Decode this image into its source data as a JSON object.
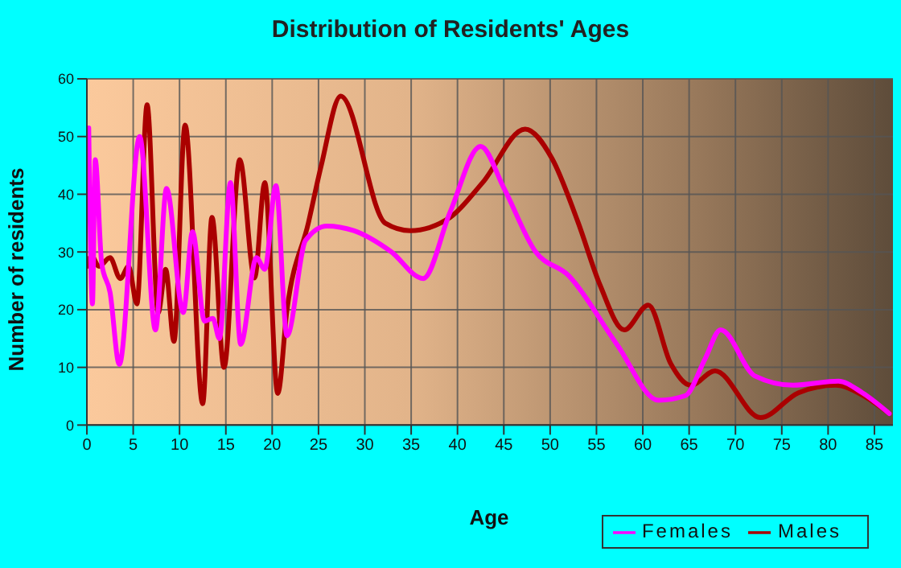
{
  "chart_data": {
    "type": "line",
    "title": "Distribution of Residents' Ages",
    "xlabel": "Age",
    "ylabel": "Number of residents",
    "xlim": [
      0,
      87
    ],
    "xticks": [
      0,
      5,
      10,
      15,
      20,
      25,
      30,
      35,
      40,
      45,
      50,
      55,
      60,
      65,
      70,
      75,
      80,
      85
    ],
    "ylim": [
      0,
      60
    ],
    "yticks": [
      0,
      10,
      20,
      30,
      40,
      50,
      60
    ],
    "grid": true,
    "legend": "bottom right",
    "marker": "none",
    "line_style": "solid",
    "series": [
      {
        "name": "Males",
        "color": "#aa0000",
        "x": [
          0,
          0.5,
          1.3,
          2.5,
          3.6,
          4.5,
          5.4,
          6.5,
          7.7,
          8.5,
          9.4,
          10.6,
          12.5,
          13.5,
          14.8,
          16.5,
          18.1,
          19.2,
          20.6,
          21.6,
          23.9,
          25.3,
          27.4,
          32.2,
          34.9,
          39.2,
          42.7,
          47.3,
          50.2,
          53,
          55.4,
          58,
          60.6,
          63,
          65.2,
          67.8,
          72.7,
          76.8,
          80.8,
          83.7,
          86.6
        ],
        "values": [
          27.5,
          29.3,
          27.5,
          29,
          25.4,
          27.5,
          21,
          55.5,
          19.5,
          27,
          14.5,
          52,
          3.7,
          36,
          10,
          46,
          25.5,
          42,
          5.5,
          20,
          35,
          45,
          57,
          35,
          33.7,
          36,
          42,
          51.3,
          46.2,
          35.2,
          24.2,
          16.5,
          20.8,
          10.7,
          6.9,
          9.4,
          1.3,
          5.6,
          6.9,
          5.2,
          2
        ]
      },
      {
        "name": "Females",
        "color": "#ff00ff",
        "x": [
          0.2,
          0.6,
          0.9,
          1.6,
          2.5,
          3.5,
          5.7,
          7.4,
          8.6,
          10.4,
          11.4,
          12.7,
          13.6,
          14.3,
          15.5,
          16.6,
          18.3,
          19.2,
          20.4,
          21.6,
          23.6,
          25.9,
          28.8,
          32.8,
          36.3,
          39.2,
          42.5,
          45,
          48.4,
          52,
          57.2,
          61.7,
          64.6,
          66.7,
          68.4,
          72.1,
          76.2,
          81.1,
          83.7,
          86.6
        ],
        "values": [
          51.5,
          21,
          46,
          28,
          23,
          10.5,
          50,
          16.5,
          41,
          19.5,
          33.5,
          18,
          18.5,
          15,
          42,
          14,
          29,
          27,
          41.5,
          15.5,
          32,
          34.5,
          33.7,
          30.1,
          25.4,
          36.9,
          48.3,
          41.1,
          30.1,
          25.9,
          14,
          4.3,
          5.1,
          11.4,
          16.5,
          8.5,
          6.9,
          7.6,
          5.6,
          2
        ]
      }
    ]
  }
}
